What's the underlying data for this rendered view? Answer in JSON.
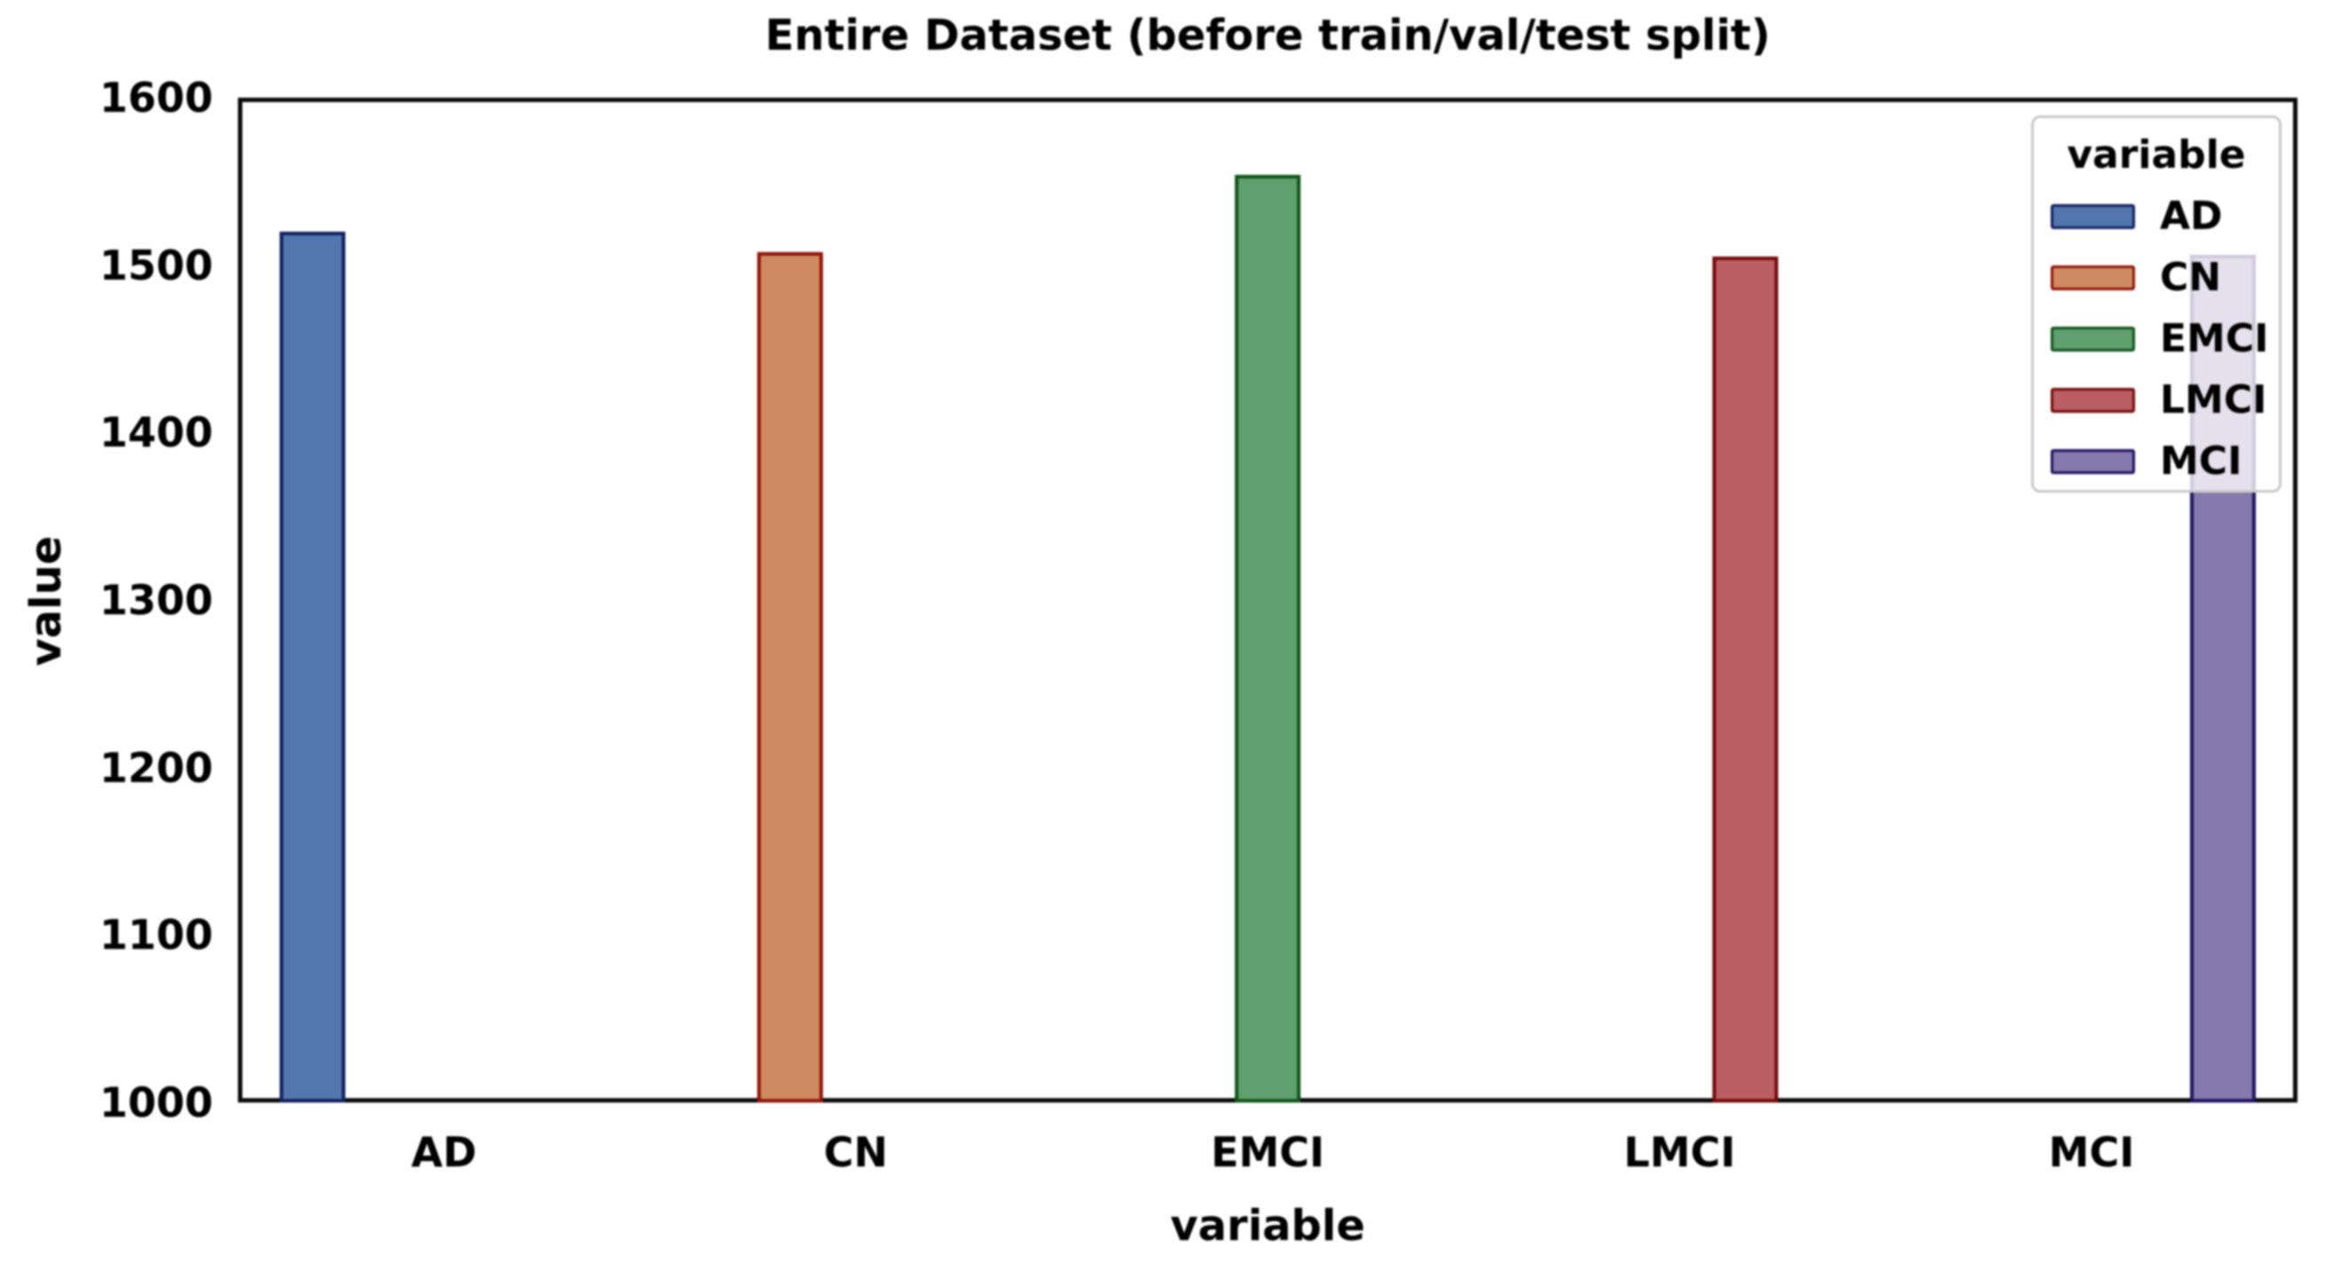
{
  "chart_data": {
    "type": "bar",
    "title": "Entire Dataset (before train/val/test split)",
    "xlabel": "variable",
    "ylabel": "value",
    "categories": [
      "AD",
      "CN",
      "EMCI",
      "LMCI",
      "MCI"
    ],
    "values": [
      1520,
      1508,
      1554,
      1505,
      1506
    ],
    "ylim": [
      1000,
      1600
    ],
    "yticks": [
      1000,
      1100,
      1200,
      1300,
      1400,
      1500,
      1600
    ],
    "grid": false,
    "legend": {
      "title": "variable",
      "position": "upper right",
      "entries": [
        "AD",
        "CN",
        "EMCI",
        "LMCI",
        "MCI"
      ]
    },
    "series_colors": [
      {
        "name": "AD",
        "fill": "#5376AE",
        "edge": "#13205E"
      },
      {
        "name": "CN",
        "fill": "#D08A61",
        "edge": "#8F1507"
      },
      {
        "name": "EMCI",
        "fill": "#5FA06E",
        "edge": "#0F541A"
      },
      {
        "name": "LMCI",
        "fill": "#BB5E64",
        "edge": "#740B0A"
      },
      {
        "name": "MCI",
        "fill": "#8579AD",
        "edge": "#1D125E"
      }
    ]
  }
}
